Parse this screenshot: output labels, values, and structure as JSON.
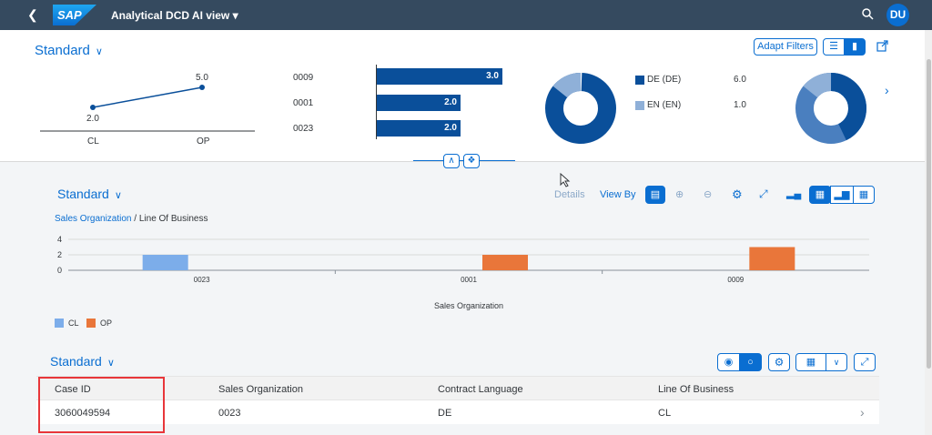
{
  "shell": {
    "logo_text": "SAP",
    "app_title": "Analytical DCD AI view",
    "avatar_initials": "DU"
  },
  "header": {
    "variant": "Standard",
    "adapt_filters": "Adapt Filters",
    "line_chart": {
      "categories": [
        "CL",
        "OP"
      ],
      "values": [
        "2.0",
        "5.0"
      ]
    },
    "bar_chart": {
      "items": [
        {
          "label": "0009",
          "value": "3.0"
        },
        {
          "label": "0001",
          "value": "2.0"
        },
        {
          "label": "0023",
          "value": "2.0"
        }
      ]
    },
    "donut1": {
      "legend": [
        {
          "label": "DE (DE)",
          "value": "6.0",
          "color": "#0a4f9a"
        },
        {
          "label": "EN (EN)",
          "value": "1.0",
          "color": "#8fb0d8"
        }
      ]
    }
  },
  "chart_section": {
    "variant": "Standard",
    "details": "Details",
    "view_by": "View By",
    "breadcrumb_link": "Sales Organization",
    "breadcrumb_sep": " / ",
    "breadcrumb_current": "Line Of Business",
    "y_ticks": [
      "4",
      "2",
      "0"
    ],
    "x_title": "Sales Organization",
    "legend": [
      {
        "label": "CL",
        "color": "#7cadea"
      },
      {
        "label": "OP",
        "color": "#e9763a"
      }
    ]
  },
  "chart_data": {
    "type": "bar",
    "categories": [
      "0023",
      "0001",
      "0009"
    ],
    "series": [
      {
        "name": "CL",
        "values": [
          2,
          0,
          0
        ]
      },
      {
        "name": "OP",
        "values": [
          0,
          2,
          3
        ]
      }
    ],
    "xlabel": "Sales Organization",
    "ylabel": "",
    "ylim": [
      0,
      4
    ],
    "yticks": [
      0,
      2,
      4
    ]
  },
  "table": {
    "variant": "Standard",
    "columns": [
      "Case ID",
      "Sales Organization",
      "Contract Language",
      "Line Of Business"
    ],
    "rows": [
      [
        "3060049594",
        "0023",
        "DE",
        "CL"
      ]
    ]
  }
}
